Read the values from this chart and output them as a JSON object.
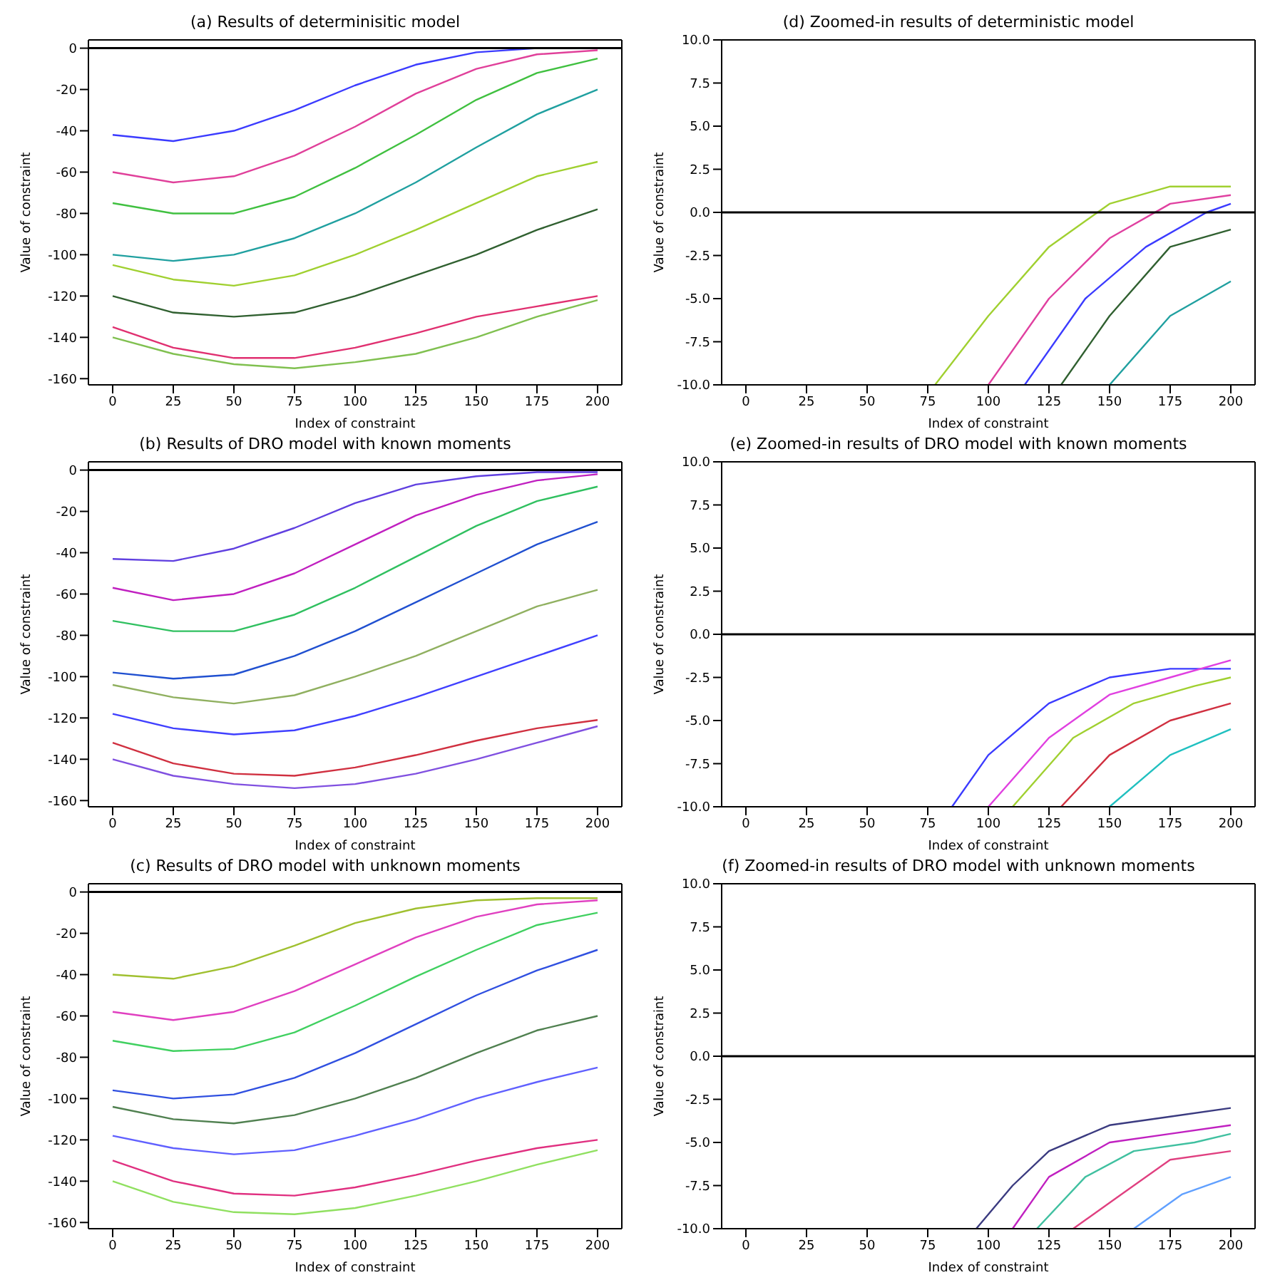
{
  "chart_data": [
    {
      "type": "line",
      "title": "(a) Results of determinisitic model",
      "xlabel": "Index of constraint",
      "ylabel": "Value of constraint",
      "xlim": [
        -10,
        210
      ],
      "xticks": [
        0,
        25,
        50,
        75,
        100,
        125,
        150,
        175,
        200
      ],
      "ylim": [
        -163,
        4
      ],
      "yticks": [
        -160,
        -140,
        -120,
        -100,
        -80,
        -60,
        -40,
        -20,
        0
      ],
      "ref_lines": [
        {
          "axis": "y",
          "value": 0,
          "color": "#000000"
        }
      ],
      "x": [
        0,
        25,
        50,
        75,
        100,
        125,
        150,
        175,
        200
      ],
      "series": [
        {
          "color": "#3b3bff",
          "values": [
            -42,
            -45,
            -40,
            -30,
            -18,
            -8,
            -2,
            0,
            0
          ]
        },
        {
          "color": "#e0409a",
          "values": [
            -60,
            -65,
            -62,
            -52,
            -38,
            -22,
            -10,
            -3,
            -1
          ]
        },
        {
          "color": "#40c040",
          "values": [
            -75,
            -80,
            -80,
            -72,
            -58,
            -42,
            -25,
            -12,
            -5
          ]
        },
        {
          "color": "#20a0a0",
          "values": [
            -100,
            -103,
            -100,
            -92,
            -80,
            -65,
            -48,
            -32,
            -20
          ]
        },
        {
          "color": "#a0d030",
          "values": [
            -105,
            -112,
            -115,
            -110,
            -100,
            -88,
            -75,
            -62,
            -55
          ]
        },
        {
          "color": "#306030",
          "values": [
            -120,
            -128,
            -130,
            -128,
            -120,
            -110,
            -100,
            -88,
            -78
          ]
        },
        {
          "color": "#e03070",
          "values": [
            -135,
            -145,
            -150,
            -150,
            -145,
            -138,
            -130,
            -125,
            -120
          ]
        },
        {
          "color": "#80c050",
          "values": [
            -140,
            -148,
            -153,
            -155,
            -152,
            -148,
            -140,
            -130,
            -122
          ]
        }
      ]
    },
    {
      "type": "line",
      "title": "(d) Zoomed-in results of deterministic model",
      "xlabel": "Index of constraint",
      "ylabel": "Value of constraint",
      "xlim": [
        -10,
        210
      ],
      "xticks": [
        0,
        25,
        50,
        75,
        100,
        125,
        150,
        175,
        200
      ],
      "ylim": [
        -10,
        10
      ],
      "yticks": [
        {
          "value": -10,
          "label": "-10.0"
        },
        -7.5,
        {
          "value": -5,
          "label": "-5.0"
        },
        -2.5,
        {
          "value": 0,
          "label": "0.0"
        },
        2.5,
        {
          "value": 5,
          "label": "5.0"
        },
        7.5,
        {
          "value": 10,
          "label": "10.0"
        }
      ],
      "ref_lines": [
        {
          "axis": "y",
          "value": 0,
          "color": "#000000"
        }
      ],
      "series": [
        {
          "color": "#a0d030",
          "x": [
            78,
            100,
            125,
            150,
            175,
            200
          ],
          "values": [
            -10,
            -6,
            -2,
            0.5,
            1.5,
            1.5
          ]
        },
        {
          "color": "#e040a0",
          "x": [
            100,
            125,
            150,
            175,
            200
          ],
          "values": [
            -10,
            -5,
            -1.5,
            0.5,
            1
          ]
        },
        {
          "color": "#3b3bff",
          "x": [
            115,
            140,
            165,
            190,
            200
          ],
          "values": [
            -10,
            -5,
            -2,
            0,
            0.5
          ]
        },
        {
          "color": "#306030",
          "x": [
            130,
            150,
            175,
            200
          ],
          "values": [
            -10,
            -6,
            -2,
            -1
          ]
        },
        {
          "color": "#20a0a0",
          "x": [
            150,
            175,
            200
          ],
          "values": [
            -10,
            -6,
            -4
          ]
        }
      ]
    },
    {
      "type": "line",
      "title": "(b) Results of DRO model with known moments",
      "xlabel": "Index of constraint",
      "ylabel": "Value of constraint",
      "xlim": [
        -10,
        210
      ],
      "xticks": [
        0,
        25,
        50,
        75,
        100,
        125,
        150,
        175,
        200
      ],
      "ylim": [
        -163,
        4
      ],
      "yticks": [
        -160,
        -140,
        -120,
        -100,
        -80,
        -60,
        -40,
        -20,
        0
      ],
      "ref_lines": [
        {
          "axis": "y",
          "value": 0,
          "color": "#000000"
        }
      ],
      "x": [
        0,
        25,
        50,
        75,
        100,
        125,
        150,
        175,
        200
      ],
      "series": [
        {
          "color": "#6040e0",
          "values": [
            -43,
            -44,
            -38,
            -28,
            -16,
            -7,
            -3,
            -1,
            -1
          ]
        },
        {
          "color": "#c020c0",
          "values": [
            -57,
            -63,
            -60,
            -50,
            -36,
            -22,
            -12,
            -5,
            -2
          ]
        },
        {
          "color": "#30c060",
          "values": [
            -73,
            -78,
            -78,
            -70,
            -57,
            -42,
            -27,
            -15,
            -8
          ]
        },
        {
          "color": "#2050d0",
          "values": [
            -98,
            -101,
            -99,
            -90,
            -78,
            -64,
            -50,
            -36,
            -25
          ]
        },
        {
          "color": "#90b060",
          "values": [
            -104,
            -110,
            -113,
            -109,
            -100,
            -90,
            -78,
            -66,
            -58
          ]
        },
        {
          "color": "#4040ff",
          "values": [
            -118,
            -125,
            -128,
            -126,
            -119,
            -110,
            -100,
            -90,
            -80
          ]
        },
        {
          "color": "#d03040",
          "values": [
            -132,
            -142,
            -147,
            -148,
            -144,
            -138,
            -131,
            -125,
            -121
          ]
        },
        {
          "color": "#8050e0",
          "values": [
            -140,
            -148,
            -152,
            -154,
            -152,
            -147,
            -140,
            -132,
            -124
          ]
        }
      ]
    },
    {
      "type": "line",
      "title": "(e) Zoomed-in results of DRO model with known moments",
      "xlabel": "Index of constraint",
      "ylabel": "Value of constraint",
      "xlim": [
        -10,
        210
      ],
      "xticks": [
        0,
        25,
        50,
        75,
        100,
        125,
        150,
        175,
        200
      ],
      "ylim": [
        -10,
        10
      ],
      "yticks": [
        {
          "value": -10,
          "label": "-10.0"
        },
        -7.5,
        {
          "value": -5,
          "label": "-5.0"
        },
        -2.5,
        {
          "value": 0,
          "label": "0.0"
        },
        2.5,
        {
          "value": 5,
          "label": "5.0"
        },
        7.5,
        {
          "value": 10,
          "label": "10.0"
        }
      ],
      "ref_lines": [
        {
          "axis": "y",
          "value": 0,
          "color": "#000000"
        }
      ],
      "series": [
        {
          "color": "#3b3bff",
          "x": [
            85,
            100,
            125,
            150,
            175,
            200
          ],
          "values": [
            -10,
            -7,
            -4,
            -2.5,
            -2,
            -2
          ]
        },
        {
          "color": "#e040e0",
          "x": [
            100,
            125,
            150,
            175,
            200
          ],
          "values": [
            -10,
            -6,
            -3.5,
            -2.5,
            -1.5
          ]
        },
        {
          "color": "#a0d030",
          "x": [
            110,
            135,
            160,
            185,
            200
          ],
          "values": [
            -10,
            -6,
            -4,
            -3,
            -2.5
          ]
        },
        {
          "color": "#d03040",
          "x": [
            130,
            150,
            175,
            200
          ],
          "values": [
            -10,
            -7,
            -5,
            -4
          ]
        },
        {
          "color": "#20c0c0",
          "x": [
            150,
            175,
            200
          ],
          "values": [
            -10,
            -7,
            -5.5
          ]
        }
      ]
    },
    {
      "type": "line",
      "title": "(c) Results of DRO model with unknown moments",
      "xlabel": "Index of constraint",
      "ylabel": "Value of constraint",
      "xlim": [
        -10,
        210
      ],
      "xticks": [
        0,
        25,
        50,
        75,
        100,
        125,
        150,
        175,
        200
      ],
      "ylim": [
        -163,
        4
      ],
      "yticks": [
        -160,
        -140,
        -120,
        -100,
        -80,
        -60,
        -40,
        -20,
        0
      ],
      "ref_lines": [
        {
          "axis": "y",
          "value": 0,
          "color": "#000000"
        }
      ],
      "x": [
        0,
        25,
        50,
        75,
        100,
        125,
        150,
        175,
        200
      ],
      "series": [
        {
          "color": "#a0c030",
          "values": [
            -40,
            -42,
            -36,
            -26,
            -15,
            -8,
            -4,
            -3,
            -3
          ]
        },
        {
          "color": "#e040c0",
          "values": [
            -58,
            -62,
            -58,
            -48,
            -35,
            -22,
            -12,
            -6,
            -4
          ]
        },
        {
          "color": "#40d060",
          "values": [
            -72,
            -77,
            -76,
            -68,
            -55,
            -41,
            -28,
            -16,
            -10
          ]
        },
        {
          "color": "#3050e0",
          "values": [
            -96,
            -100,
            -98,
            -90,
            -78,
            -64,
            -50,
            -38,
            -28
          ]
        },
        {
          "color": "#508050",
          "values": [
            -104,
            -110,
            -112,
            -108,
            -100,
            -90,
            -78,
            -67,
            -60
          ]
        },
        {
          "color": "#6060ff",
          "values": [
            -118,
            -124,
            -127,
            -125,
            -118,
            -110,
            -100,
            -92,
            -85
          ]
        },
        {
          "color": "#e03080",
          "values": [
            -130,
            -140,
            -146,
            -147,
            -143,
            -137,
            -130,
            -124,
            -120
          ]
        },
        {
          "color": "#90e060",
          "values": [
            -140,
            -150,
            -155,
            -156,
            -153,
            -147,
            -140,
            -132,
            -125
          ]
        }
      ]
    },
    {
      "type": "line",
      "title": "(f) Zoomed-in results of DRO model with unknown moments",
      "xlabel": "Index of constraint",
      "ylabel": "Value of constraint",
      "xlim": [
        -10,
        210
      ],
      "xticks": [
        0,
        25,
        50,
        75,
        100,
        125,
        150,
        175,
        200
      ],
      "ylim": [
        -10,
        10
      ],
      "yticks": [
        {
          "value": -10,
          "label": "-10.0"
        },
        -7.5,
        {
          "value": -5,
          "label": "-5.0"
        },
        -2.5,
        {
          "value": 0,
          "label": "0.0"
        },
        2.5,
        {
          "value": 5,
          "label": "5.0"
        },
        7.5,
        {
          "value": 10,
          "label": "10.0"
        }
      ],
      "ref_lines": [
        {
          "axis": "y",
          "value": 0,
          "color": "#000000"
        }
      ],
      "series": [
        {
          "color": "#3b3b80",
          "x": [
            95,
            110,
            125,
            150,
            175,
            200
          ],
          "values": [
            -10,
            -7.5,
            -5.5,
            -4,
            -3.5,
            -3
          ]
        },
        {
          "color": "#c020c0",
          "x": [
            110,
            125,
            150,
            175,
            200
          ],
          "values": [
            -10,
            -7,
            -5,
            -4.5,
            -4
          ]
        },
        {
          "color": "#40c0a0",
          "x": [
            120,
            140,
            160,
            185,
            200
          ],
          "values": [
            -10,
            -7,
            -5.5,
            -5,
            -4.5
          ]
        },
        {
          "color": "#e04080",
          "x": [
            135,
            155,
            175,
            200
          ],
          "values": [
            -10,
            -8,
            -6,
            -5.5
          ]
        },
        {
          "color": "#60a0ff",
          "x": [
            160,
            180,
            200
          ],
          "values": [
            -10,
            -8,
            -7
          ]
        }
      ]
    }
  ]
}
